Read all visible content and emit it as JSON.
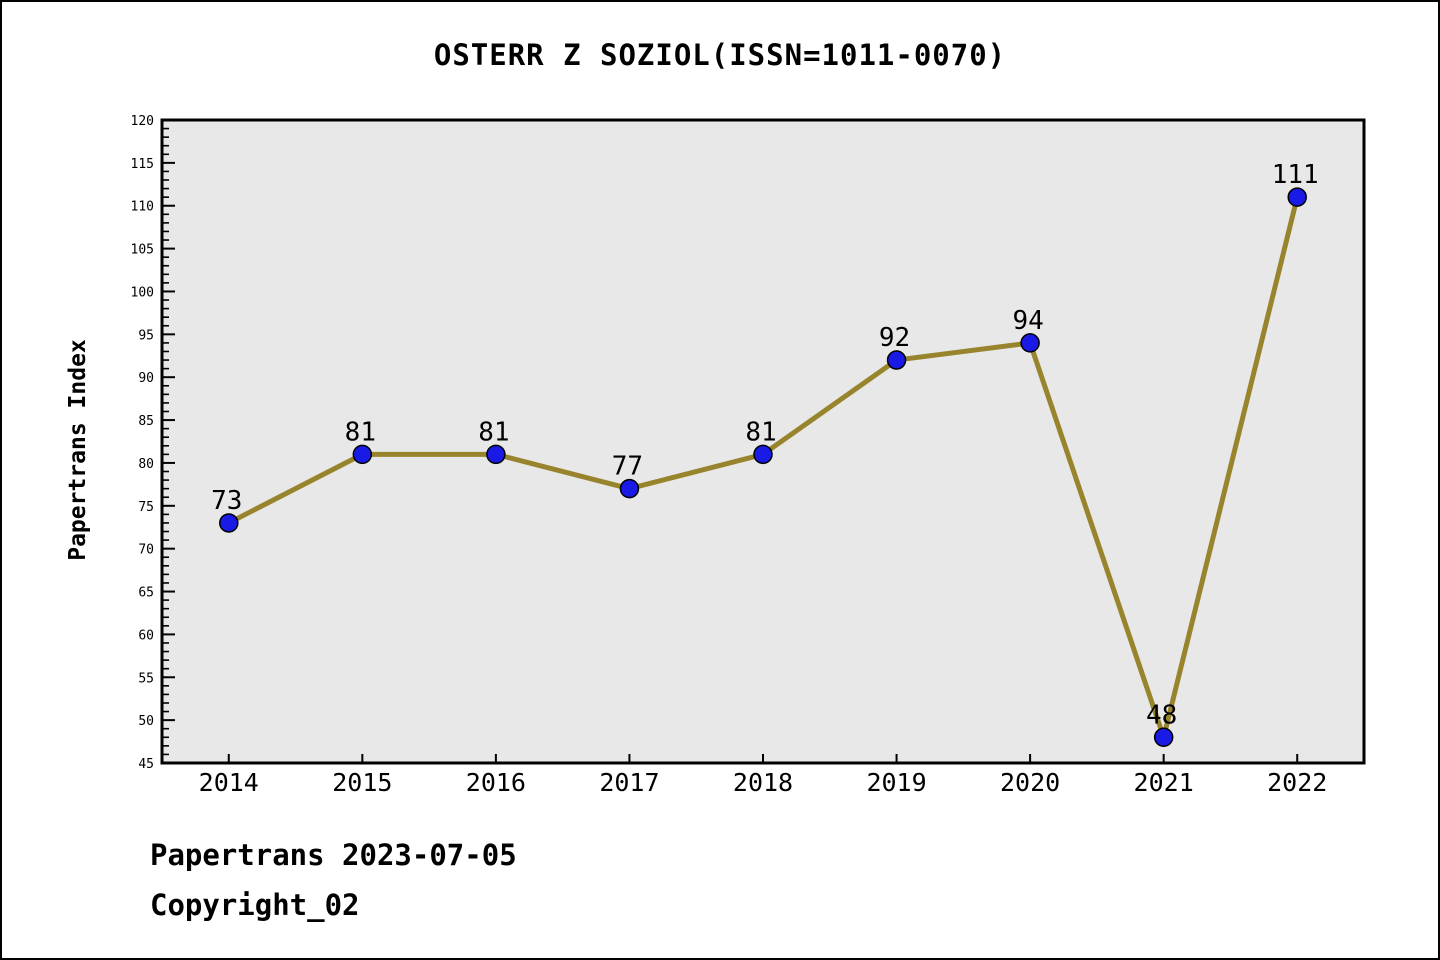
{
  "title": "OSTERR Z SOZIOL(ISSN=1011-0070)",
  "footer": {
    "line1": "Papertrans 2023-07-05",
    "line2": "Copyright_02"
  },
  "chart_data": {
    "type": "line",
    "title": "OSTERR Z SOZIOL(ISSN=1011-0070)",
    "categories": [
      "2014",
      "2015",
      "2016",
      "2017",
      "2018",
      "2019",
      "2020",
      "2021",
      "2022"
    ],
    "values": [
      73,
      81,
      81,
      77,
      81,
      92,
      94,
      48,
      111
    ],
    "point_labels": [
      "73",
      "81",
      "81",
      "77",
      "81",
      "92",
      "94",
      "48",
      "111"
    ],
    "xlabel": "",
    "ylabel": "Papertrans Index",
    "ylim": [
      45,
      120
    ],
    "ytick_step": 5,
    "yminor_step": 1,
    "grid": false,
    "legend": "none",
    "colors": {
      "line": "#97842C",
      "marker_fill": "#1A1AE6",
      "marker_edge": "#000000",
      "plot_background": "#E8E8E8",
      "axis": "#000000",
      "text": "#000000",
      "figure_background": "#FFFFFF"
    }
  }
}
